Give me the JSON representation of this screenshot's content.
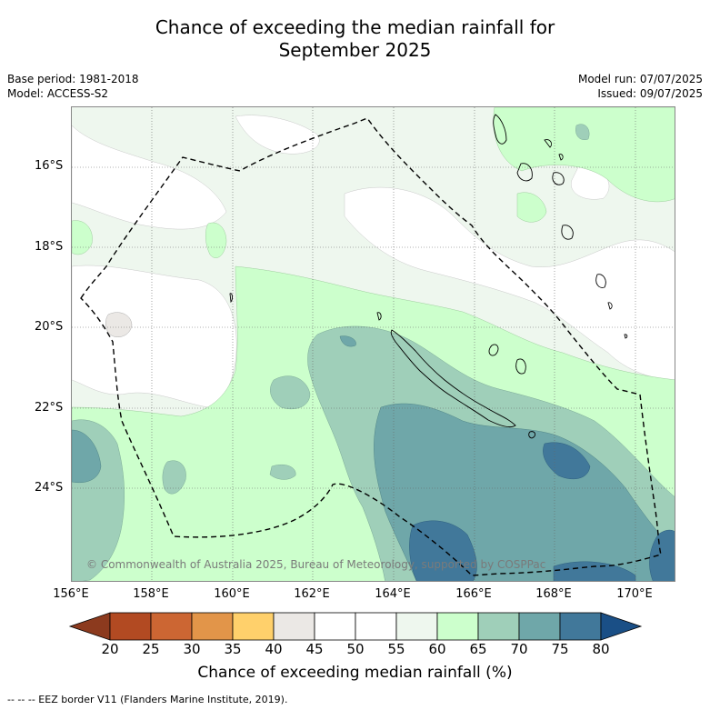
{
  "title_line1": "Chance of exceeding the median rainfall for",
  "title_line2": "September 2025",
  "base_period": "Base period: 1981-2018",
  "model": "Model: ACCESS-S2",
  "model_run": "Model run: 07/07/2025",
  "issued": "Issued: 09/07/2025",
  "lat_labels": [
    "16°S",
    "18°S",
    "20°S",
    "22°S",
    "24°S"
  ],
  "lon_labels": [
    "156°E",
    "158°E",
    "160°E",
    "162°E",
    "164°E",
    "166°E",
    "168°E",
    "170°E"
  ],
  "copyright": "© Commonwealth of Australia 2025, Bureau of Meteorology, supported by COSPPac",
  "colorbar": {
    "title": "Chance of exceeding median rainfall (%)",
    "ticks": [
      "20",
      "25",
      "30",
      "35",
      "40",
      "45",
      "50",
      "55",
      "60",
      "65",
      "70",
      "75",
      "80"
    ],
    "colors": {
      "below_20": "#8c3a1e",
      "20_25": "#b24a22",
      "25_30": "#cc6633",
      "30_35": "#e29549",
      "35_40": "#ffd06b",
      "40_45": "#ebe8e5",
      "45_50": "#ffffff",
      "50_55": "#ffffff",
      "55_60": "#eef7ee",
      "60_65": "#ccffcc",
      "65_70": "#9fcfb9",
      "70_75": "#6fa7a9",
      "75_80": "#41789a",
      "above_80": "#1a4f86"
    }
  },
  "footnote": "--  --  -- EEZ border V11 (Flanders Marine Institute, 2019)."
}
